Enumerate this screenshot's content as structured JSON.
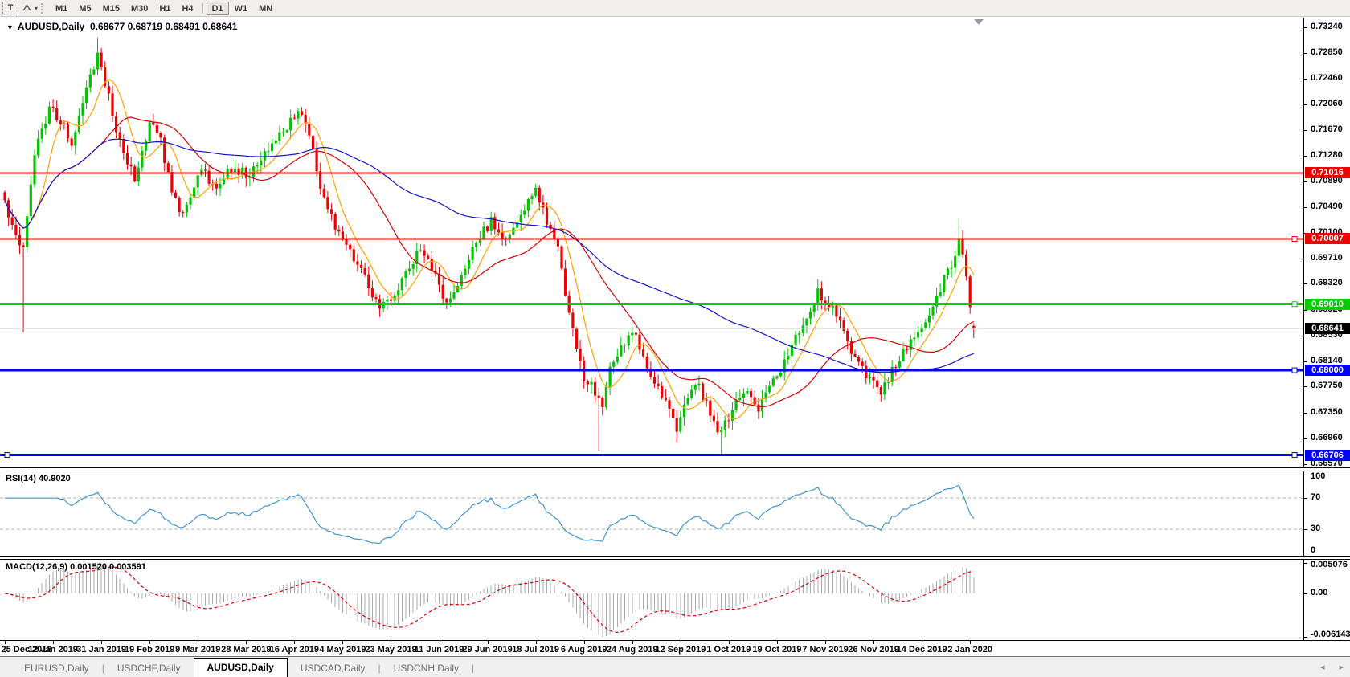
{
  "toolbar": {
    "text_tool_label": "T",
    "dropdown_caret": "▾",
    "timeframes": [
      "M1",
      "M5",
      "M15",
      "M30",
      "H1",
      "H4",
      "D1",
      "W1",
      "MN"
    ],
    "active_timeframe": "D1"
  },
  "chart": {
    "collapse_caret": "▼",
    "symbol_label": "AUDUSD,Daily",
    "ohlc_label": "0.68677 0.68719 0.68491 0.68641"
  },
  "tabs": {
    "items": [
      "EURUSD,Daily",
      "USDCHF,Daily",
      "AUDUSD,Daily",
      "USDCAD,Daily",
      "USDCNH,Daily"
    ],
    "active": "AUDUSD,Daily",
    "scroll_left": "◂",
    "scroll_right": "▸"
  },
  "chart_data": {
    "type": "candlestick",
    "symbol": "AUDUSD",
    "timeframe": "Daily",
    "last_ohlc": {
      "open": 0.68677,
      "high": 0.68719,
      "low": 0.68491,
      "close": 0.68641
    },
    "bar_count": 262,
    "price_axis_ticks": [
      "0.73240",
      "0.72850",
      "0.72460",
      "0.72060",
      "0.71670",
      "0.71280",
      "0.70890",
      "0.70490",
      "0.70100",
      "0.69710",
      "0.69320",
      "0.68920",
      "0.68530",
      "0.68140",
      "0.67750",
      "0.67350",
      "0.66960",
      "0.66570"
    ],
    "x_axis_labels": [
      "25 Dec 2018",
      "12 Jan 2019",
      "31 Jan 2019",
      "19 Feb 2019",
      "9 Mar 2019",
      "28 Mar 2019",
      "16 Apr 2019",
      "4 May 2019",
      "23 May 2019",
      "11 Jun 2019",
      "29 Jun 2019",
      "18 Jul 2019",
      "6 Aug 2019",
      "24 Aug 2019",
      "12 Sep 2019",
      "1 Oct 2019",
      "19 Oct 2019",
      "7 Nov 2019",
      "26 Nov 2019",
      "14 Dec 2019",
      "2 Jan 2020"
    ],
    "bars_per_x_label": 13,
    "price_range_top": 0.7324,
    "horizontal_levels": [
      {
        "price": 0.71016,
        "label": "0.71016",
        "color": "#ee0000",
        "thickness": 2,
        "handles": []
      },
      {
        "price": 0.70007,
        "label": "0.70007",
        "color": "#ee0000",
        "thickness": 2,
        "handles": [
          "right"
        ]
      },
      {
        "price": 0.6901,
        "label": "0.69010",
        "color": "#00cc00",
        "thickness": 3,
        "handles": [
          "right"
        ]
      },
      {
        "price": 0.68,
        "label": "0.68000",
        "color": "#0000ff",
        "thickness": 3,
        "handles": [
          "right"
        ]
      },
      {
        "price": 0.66706,
        "label": "0.66706",
        "color": "#0000ff",
        "thickness": 3,
        "handles": [
          "left",
          "right"
        ]
      }
    ],
    "current_price": {
      "price": 0.68641,
      "label": "0.68641",
      "line_color": "#c8c8c8",
      "badge_color": "#000000"
    },
    "candle_colors": {
      "up": "#00c400",
      "down": "#ed0000"
    },
    "moving_averages": [
      {
        "name": "fast-ma",
        "period": 8,
        "color": "#ffa000"
      },
      {
        "name": "medium-ma",
        "period": 27,
        "color": "#d40000"
      },
      {
        "name": "slow-ma",
        "period": 80,
        "color": "#1515c8"
      }
    ],
    "price_path_anchors": [
      [
        0,
        0.706
      ],
      [
        3,
        0.7005
      ],
      [
        5,
        0.699
      ],
      [
        8,
        0.7135
      ],
      [
        12,
        0.72
      ],
      [
        15,
        0.718
      ],
      [
        18,
        0.7148
      ],
      [
        21,
        0.7215
      ],
      [
        25,
        0.7285
      ],
      [
        27,
        0.724
      ],
      [
        29,
        0.719
      ],
      [
        31,
        0.7148
      ],
      [
        35,
        0.7095
      ],
      [
        39,
        0.7178
      ],
      [
        42,
        0.715
      ],
      [
        45,
        0.7068
      ],
      [
        48,
        0.704
      ],
      [
        53,
        0.7105
      ],
      [
        57,
        0.7078
      ],
      [
        61,
        0.711
      ],
      [
        66,
        0.7098
      ],
      [
        70,
        0.7128
      ],
      [
        74,
        0.7158
      ],
      [
        79,
        0.7198
      ],
      [
        82,
        0.7165
      ],
      [
        85,
        0.708
      ],
      [
        90,
        0.7008
      ],
      [
        94,
        0.6968
      ],
      [
        98,
        0.693
      ],
      [
        101,
        0.689
      ],
      [
        105,
        0.692
      ],
      [
        109,
        0.6958
      ],
      [
        112,
        0.6988
      ],
      [
        116,
        0.6948
      ],
      [
        119,
        0.6898
      ],
      [
        122,
        0.6932
      ],
      [
        126,
        0.6988
      ],
      [
        131,
        0.7028
      ],
      [
        135,
        0.6998
      ],
      [
        139,
        0.7038
      ],
      [
        143,
        0.7072
      ],
      [
        146,
        0.7028
      ],
      [
        149,
        0.6988
      ],
      [
        152,
        0.6888
      ],
      [
        156,
        0.679
      ],
      [
        159,
        0.6768
      ],
      [
        161,
        0.6742
      ],
      [
        163,
        0.68
      ],
      [
        166,
        0.6838
      ],
      [
        170,
        0.6855
      ],
      [
        173,
        0.6808
      ],
      [
        176,
        0.6772
      ],
      [
        179,
        0.6735
      ],
      [
        181,
        0.6712
      ],
      [
        184,
        0.6758
      ],
      [
        187,
        0.6778
      ],
      [
        190,
        0.673
      ],
      [
        193,
        0.6705
      ],
      [
        197,
        0.6748
      ],
      [
        200,
        0.6768
      ],
      [
        203,
        0.6742
      ],
      [
        206,
        0.6778
      ],
      [
        210,
        0.6812
      ],
      [
        213,
        0.6848
      ],
      [
        216,
        0.6878
      ],
      [
        219,
        0.6918
      ],
      [
        223,
        0.6898
      ],
      [
        226,
        0.6858
      ],
      [
        229,
        0.682
      ],
      [
        232,
        0.6788
      ],
      [
        236,
        0.6768
      ],
      [
        239,
        0.6798
      ],
      [
        242,
        0.6828
      ],
      [
        245,
        0.685
      ],
      [
        249,
        0.6878
      ],
      [
        252,
        0.6928
      ],
      [
        255,
        0.6958
      ],
      [
        257,
        0.6998
      ],
      [
        259,
        0.6948
      ],
      [
        260,
        0.69
      ],
      [
        261,
        0.68641
      ]
    ],
    "wick_spikes": [
      {
        "i": 5,
        "low": 0.6858
      },
      {
        "i": 25,
        "high": 0.7308
      },
      {
        "i": 160,
        "low": 0.6677
      },
      {
        "i": 181,
        "low": 0.6689
      },
      {
        "i": 193,
        "low": 0.6671
      },
      {
        "i": 257,
        "high": 0.7032
      }
    ],
    "indicators": {
      "rsi": {
        "label": "RSI(14) 40.9020",
        "period": 14,
        "value": 40.902,
        "axis_labels": [
          "100",
          "70",
          "30",
          "0"
        ],
        "guide_levels": [
          70,
          30
        ],
        "color": "#3e95d6"
      },
      "macd": {
        "label": "MACD(12,26,9) 0.001520 0.003591",
        "fast": 12,
        "slow": 26,
        "signal": 9,
        "macd_value": 0.00152,
        "signal_value": 0.003591,
        "axis_labels": [
          "0.005076",
          "0.00",
          "-0.006143"
        ],
        "histogram_color": "#ababab",
        "signal_color": "#dd0000"
      }
    }
  }
}
